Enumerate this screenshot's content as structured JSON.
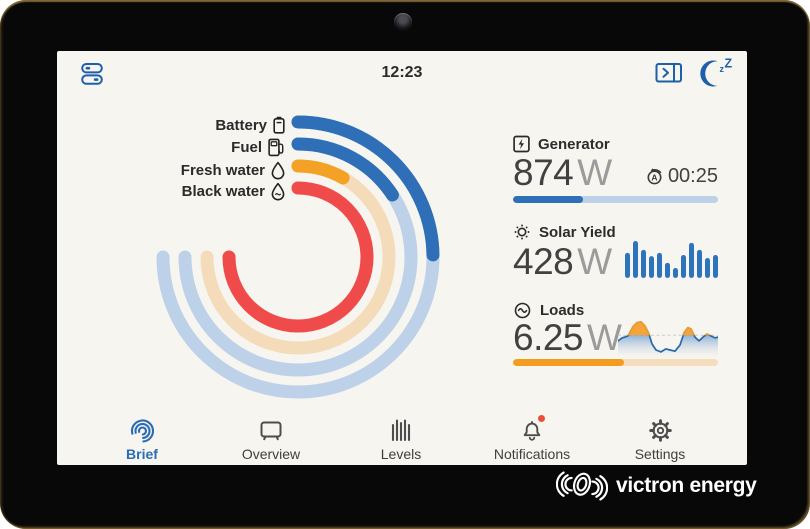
{
  "status_bar": {
    "time": "12:23"
  },
  "panels": {
    "generator": {
      "label": "Generator",
      "value": "874",
      "unit": "W",
      "timer": "00:25",
      "bar_percent": 34,
      "bar_color": "#2e6fb7",
      "bar_track": "#bdd1e9"
    },
    "solar": {
      "label": "Solar Yield",
      "value": "428",
      "unit": "W"
    },
    "loads": {
      "label": "Loads",
      "value": "6.25",
      "unit": "W",
      "bar_percent": 54,
      "bar_color": "#f39c1f",
      "bar_track": "#f4ddbc"
    }
  },
  "nav": {
    "items": [
      {
        "label": "Brief",
        "icon": "brief-icon",
        "active": true,
        "badge": false
      },
      {
        "label": "Overview",
        "icon": "overview-icon",
        "active": false,
        "badge": false
      },
      {
        "label": "Levels",
        "icon": "levels-icon",
        "active": false,
        "badge": false
      },
      {
        "label": "Notifications",
        "icon": "bell-icon",
        "active": false,
        "badge": true
      },
      {
        "label": "Settings",
        "icon": "gear-icon",
        "active": false,
        "badge": false
      }
    ]
  },
  "device": {
    "brand": "victron energy"
  },
  "colors": {
    "accent_blue": "#2e6fb7",
    "light_blue_track": "#bdd1e9",
    "orange": "#f3a226",
    "orange_track": "#f4dcba",
    "red": "#f04b4b",
    "screen_bg": "#f7f5ef",
    "badge_red": "#e8503a",
    "top_icon_blue": "#1d5fa8"
  },
  "chart_data": [
    {
      "type": "radial-gauge",
      "total_angle_deg": 270,
      "start": "12-oclock-clockwise",
      "rows": [
        {
          "label": "Battery",
          "icon": "battery-icon",
          "percent": 33,
          "color": "#2e6fb7",
          "track_color": "#bdd1e9"
        },
        {
          "label": "Fuel",
          "icon": "fuel-pump-icon",
          "percent": 21,
          "color": "#2e6fb7",
          "track_color": "#bdd1e9"
        },
        {
          "label": "Fresh water",
          "icon": "water-drop-icon",
          "percent": 11,
          "color": "#f3a226",
          "track_color": "#f4dcba"
        },
        {
          "label": "Black water",
          "icon": "waste-drop-icon",
          "percent": 100,
          "color": "#f04b4b",
          "track_color": "#f6cac3"
        }
      ]
    },
    {
      "type": "bar",
      "name": "solar-yield-sparkline",
      "color": "#2e74bd",
      "values": [
        68,
        100,
        76,
        59,
        68,
        41,
        27,
        62,
        95,
        76,
        54,
        62
      ]
    },
    {
      "type": "area",
      "name": "loads-sparkline",
      "line_color": "#2a67ad",
      "fill_top": "#3f7ec4",
      "fill_bottom": "#f3f1ec",
      "peak_color": "#f3a43a",
      "peak_stroke": "#ef9b22",
      "threshold": 40,
      "dash_color": "#cccccc",
      "points": [
        [
          0,
          55
        ],
        [
          4,
          47
        ],
        [
          10,
          42
        ],
        [
          15,
          18
        ],
        [
          19,
          7
        ],
        [
          23,
          5
        ],
        [
          27,
          16
        ],
        [
          31,
          37
        ],
        [
          34,
          63
        ],
        [
          38,
          79
        ],
        [
          43,
          84
        ],
        [
          48,
          76
        ],
        [
          52,
          79
        ],
        [
          57,
          82
        ],
        [
          62,
          66
        ],
        [
          66,
          34
        ],
        [
          70,
          20
        ],
        [
          73,
          24
        ],
        [
          77,
          45
        ],
        [
          81,
          55
        ],
        [
          85,
          45
        ],
        [
          89,
          37
        ],
        [
          93,
          42
        ],
        [
          97,
          47
        ],
        [
          100,
          45
        ]
      ]
    }
  ]
}
